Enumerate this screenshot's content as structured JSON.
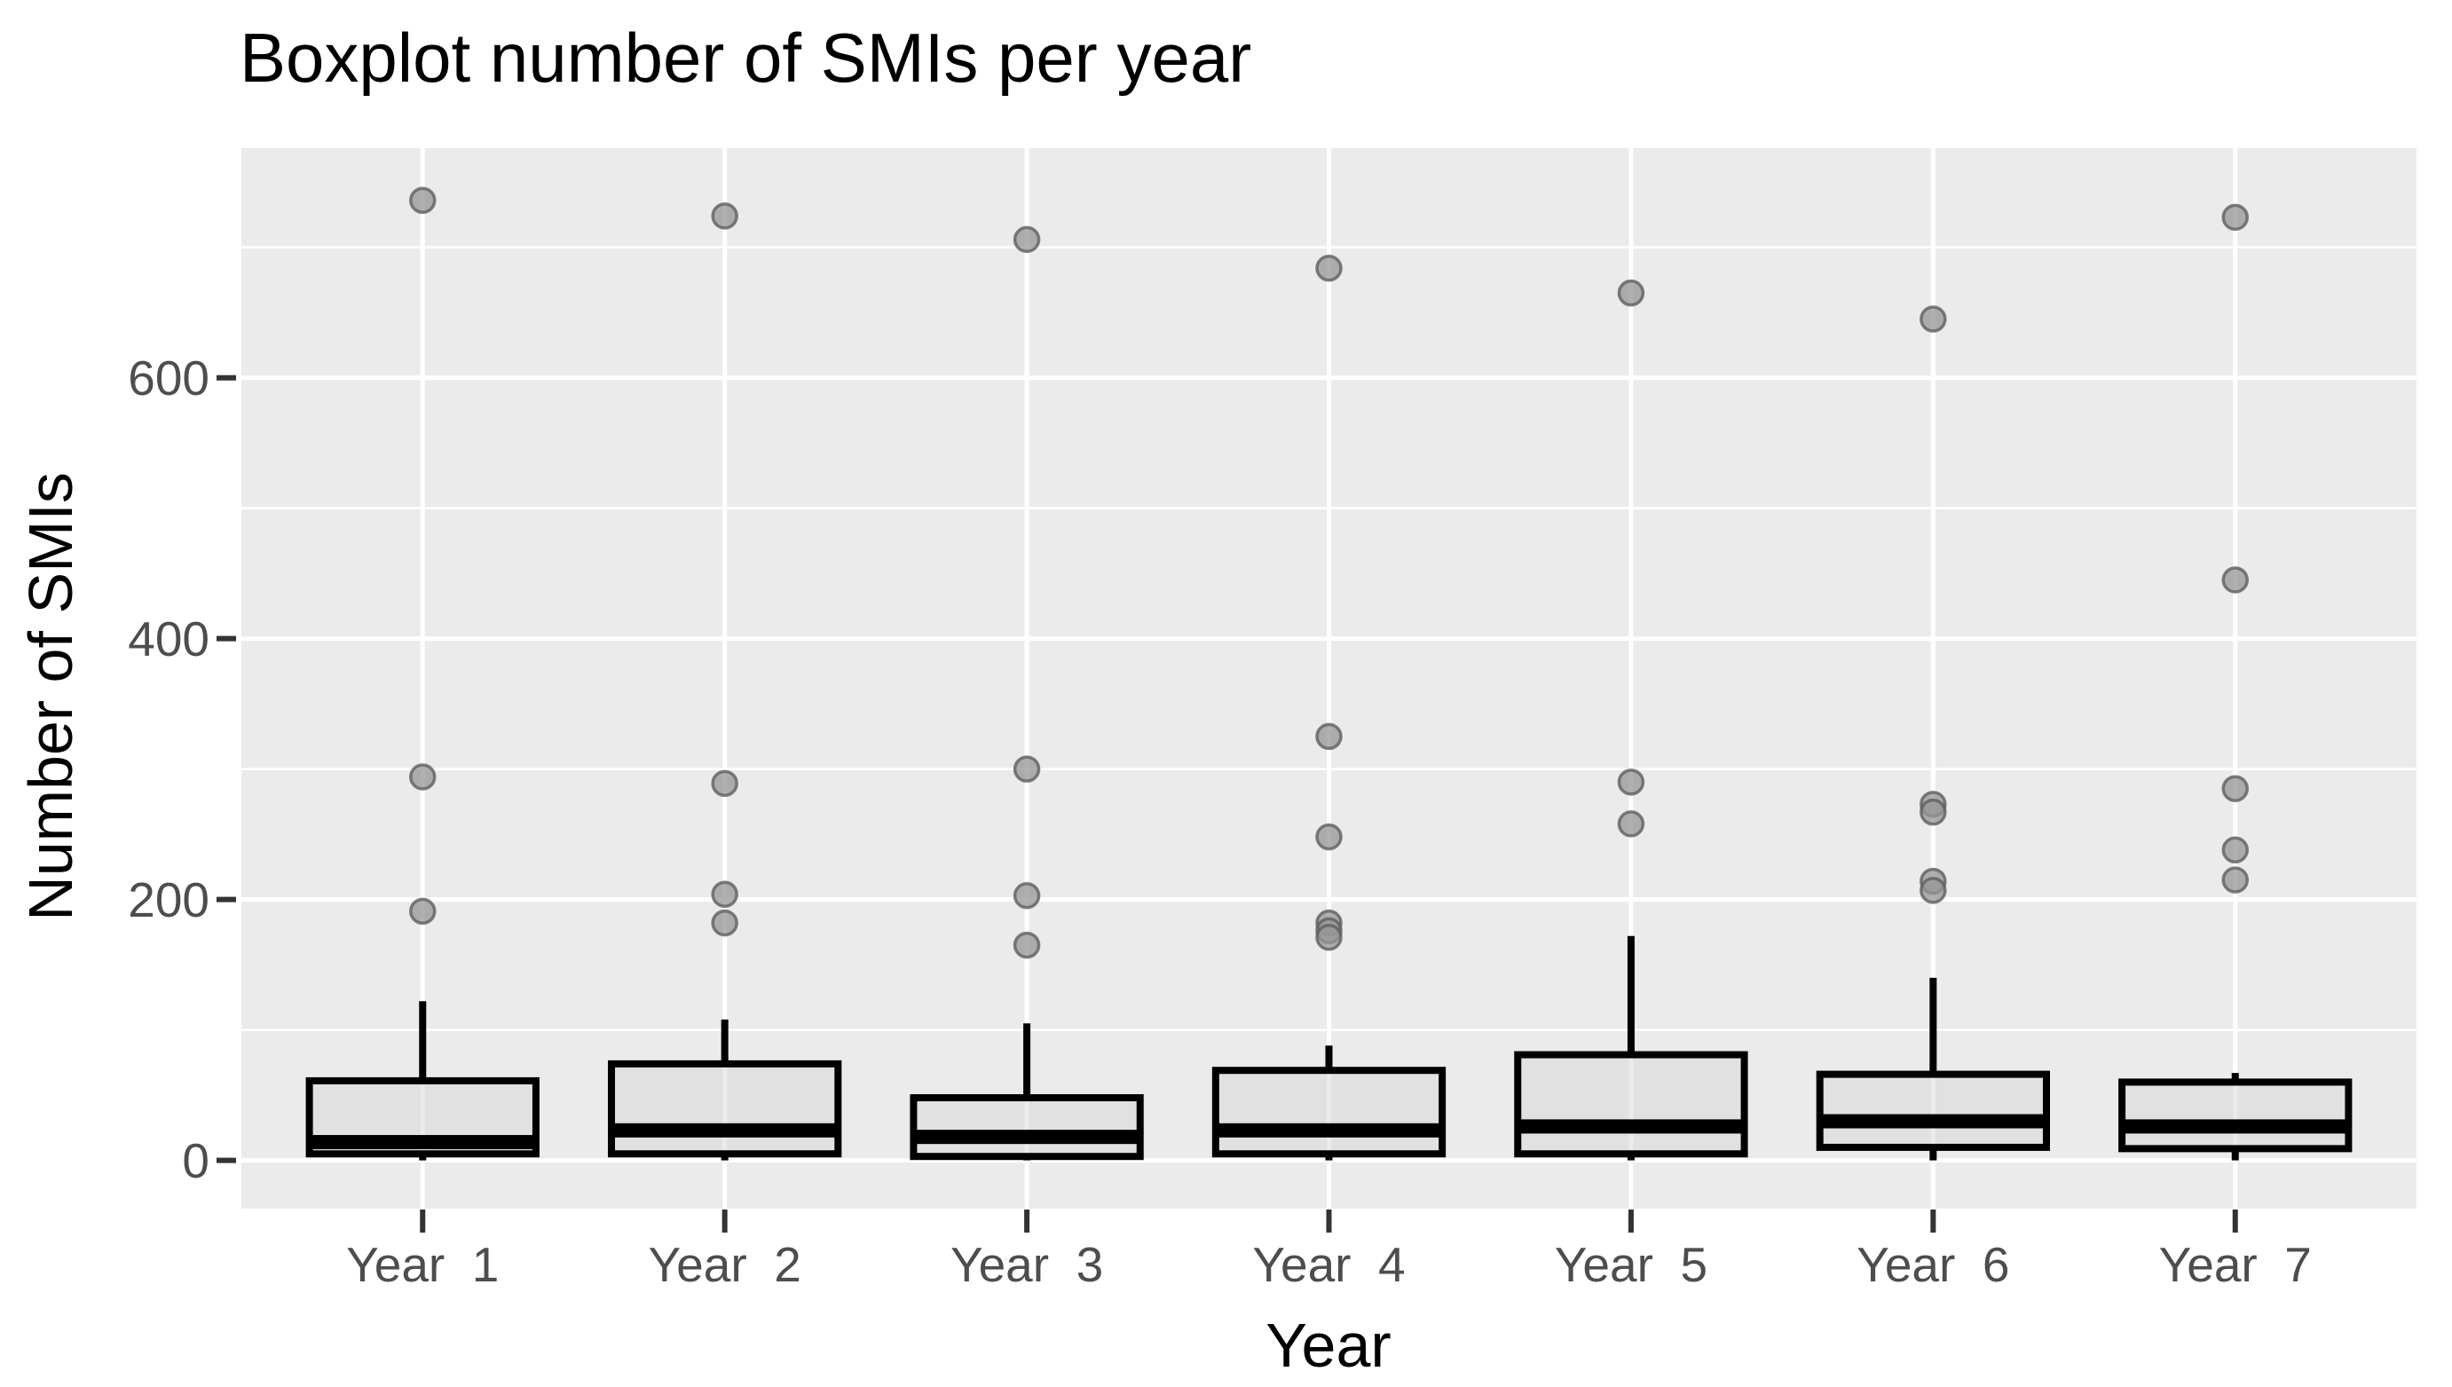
{
  "chart_data": {
    "type": "boxplot",
    "title": "Boxplot number of SMIs per year",
    "xlabel": "Year",
    "ylabel": "Number of SMIs",
    "categories": [
      "Year  1",
      "Year  2",
      "Year  3",
      "Year  4",
      "Year  5",
      "Year  6",
      "Year  7"
    ],
    "y_ticks": [
      0,
      200,
      400,
      600
    ],
    "y_minor_gridlines": [
      100,
      300,
      500,
      700
    ],
    "ylim": [
      -37,
      776
    ],
    "legend_position": "none",
    "grid": "white major and minor gridlines on grey panel",
    "series": [
      {
        "category": "Year  1",
        "min": 0,
        "q1": 5,
        "median": 14,
        "q3": 61,
        "whisker_high": 122,
        "outliers": [
          736,
          294,
          191
        ]
      },
      {
        "category": "Year  2",
        "min": 0,
        "q1": 5,
        "median": 23,
        "q3": 74,
        "whisker_high": 108,
        "outliers": [
          724,
          289,
          204,
          182
        ]
      },
      {
        "category": "Year  3",
        "min": 0,
        "q1": 3,
        "median": 18,
        "q3": 48,
        "whisker_high": 105,
        "outliers": [
          706,
          300,
          203,
          165
        ]
      },
      {
        "category": "Year  4",
        "min": 0,
        "q1": 5,
        "median": 23,
        "q3": 69,
        "whisker_high": 88,
        "outliers": [
          684,
          325,
          248,
          182,
          176,
          171
        ]
      },
      {
        "category": "Year  5",
        "min": 0,
        "q1": 5,
        "median": 26,
        "q3": 81,
        "whisker_high": 172,
        "outliers": [
          665,
          290,
          258
        ]
      },
      {
        "category": "Year  6",
        "min": 0,
        "q1": 10,
        "median": 30,
        "q3": 66,
        "whisker_high": 140,
        "outliers": [
          645,
          273,
          267,
          214,
          207
        ]
      },
      {
        "category": "Year  7",
        "min": 0,
        "q1": 9,
        "median": 26,
        "q3": 60,
        "whisker_high": 67,
        "outliers": [
          723,
          445,
          285,
          238,
          215
        ]
      }
    ]
  },
  "colors": {
    "page_background": "#FFFFFF",
    "panel_background": "#EBEBEB",
    "gridline": "#FFFFFF",
    "box_border": "#000000",
    "box_fill": "rgba(215,215,215,0.5)",
    "median": "#000000",
    "outlier_fill": "#969696",
    "outlier_stroke": "#5F5F5F",
    "tick_mark": "#333333",
    "tick_label": "#4D4D4D",
    "title_color": "#000000"
  }
}
